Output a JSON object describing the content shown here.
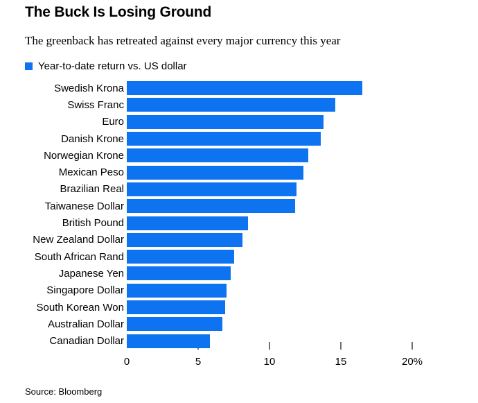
{
  "header": {
    "title": "The Buck Is Losing Ground",
    "subtitle": "The greenback has retreated against every major currency this year"
  },
  "legend": {
    "swatch_color": "#0d73f0",
    "label": "Year-to-date return vs. US dollar"
  },
  "chart_data": {
    "type": "bar",
    "orientation": "horizontal",
    "title": "The Buck Is Losing Ground",
    "subtitle": "The greenback has retreated against every major currency this year",
    "legend_entry": "Year-to-date return vs. US dollar",
    "categories": [
      "Swedish Krona",
      "Swiss Franc",
      "Euro",
      "Danish Krone",
      "Norwegian Krone",
      "Mexican Peso",
      "Brazilian Real",
      "Taiwanese Dollar",
      "British Pound",
      "New Zealand Dollar",
      "South African Rand",
      "Japanese Yen",
      "Singapore Dollar",
      "South Korean Won",
      "Australian Dollar",
      "Canadian Dollar"
    ],
    "values": [
      16.5,
      14.6,
      13.8,
      13.6,
      12.7,
      12.4,
      11.9,
      11.8,
      8.5,
      8.1,
      7.5,
      7.3,
      7.0,
      6.9,
      6.7,
      5.8
    ],
    "value_unit": "percent",
    "xlim": [
      0,
      20
    ],
    "x_ticks": [
      0,
      5,
      10,
      15,
      20
    ],
    "x_tick_labels": [
      "0",
      "5",
      "10",
      "15",
      "20%"
    ],
    "bar_color": "#0d73f0",
    "tick_color": "#6f7072",
    "grid": false,
    "legend_position": "top-left"
  },
  "footer": {
    "source": "Source: Bloomberg"
  }
}
